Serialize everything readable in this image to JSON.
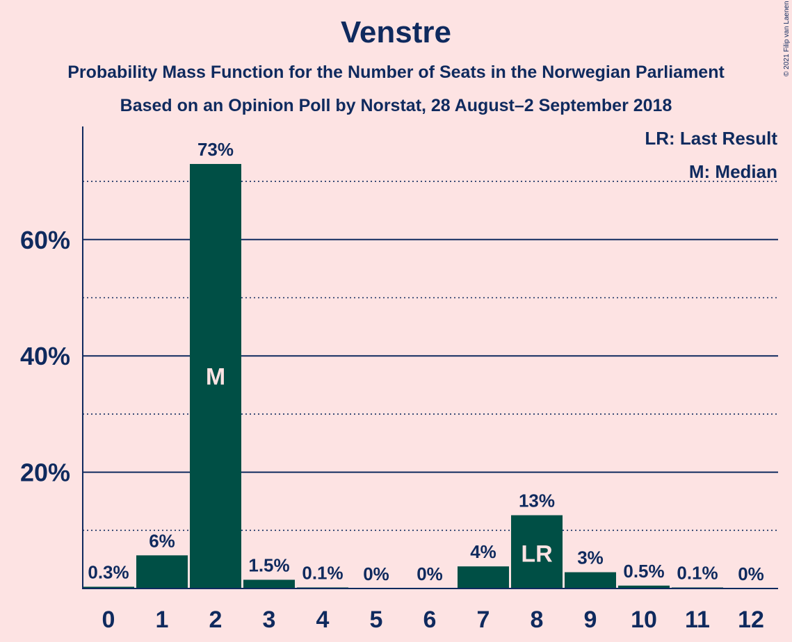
{
  "page": {
    "title": "Venstre",
    "subtitle_line1": "Probability Mass Function for the Number of Seats in the Norwegian Parliament",
    "subtitle_line2": "Based on an Opinion Poll by Norstat, 28 August–2 September 2018",
    "copyright": "© 2021 Filip van Laenen",
    "legend_lr": "LR: Last Result",
    "legend_m": "M: Median"
  },
  "colors": {
    "background": "#fde3e3",
    "bar": "#004f45",
    "text": "#0f2a5e",
    "bar_label": "#fde3e3"
  },
  "chart_data": {
    "type": "bar",
    "title": "Venstre",
    "categories": [
      "0",
      "1",
      "2",
      "3",
      "4",
      "5",
      "6",
      "7",
      "8",
      "9",
      "10",
      "11",
      "12"
    ],
    "values": [
      0.3,
      5.7,
      73,
      1.5,
      0.1,
      0,
      0,
      3.8,
      12.6,
      2.8,
      0.5,
      0.1,
      0
    ],
    "value_labels": [
      "0.3%",
      "6%",
      "73%",
      "1.5%",
      "0.1%",
      "0%",
      "0%",
      "4%",
      "13%",
      "3%",
      "0.5%",
      "0.1%",
      "0%"
    ],
    "bar_markers": {
      "2": "M",
      "8": "LR"
    },
    "y_ticks": [
      20,
      40,
      60
    ],
    "y_tick_labels": [
      "20%",
      "40%",
      "60%"
    ],
    "y_minor_gridlines": [
      10,
      30,
      50,
      70
    ],
    "ylim": [
      0,
      80
    ],
    "grid": true,
    "legend": "top-right"
  }
}
